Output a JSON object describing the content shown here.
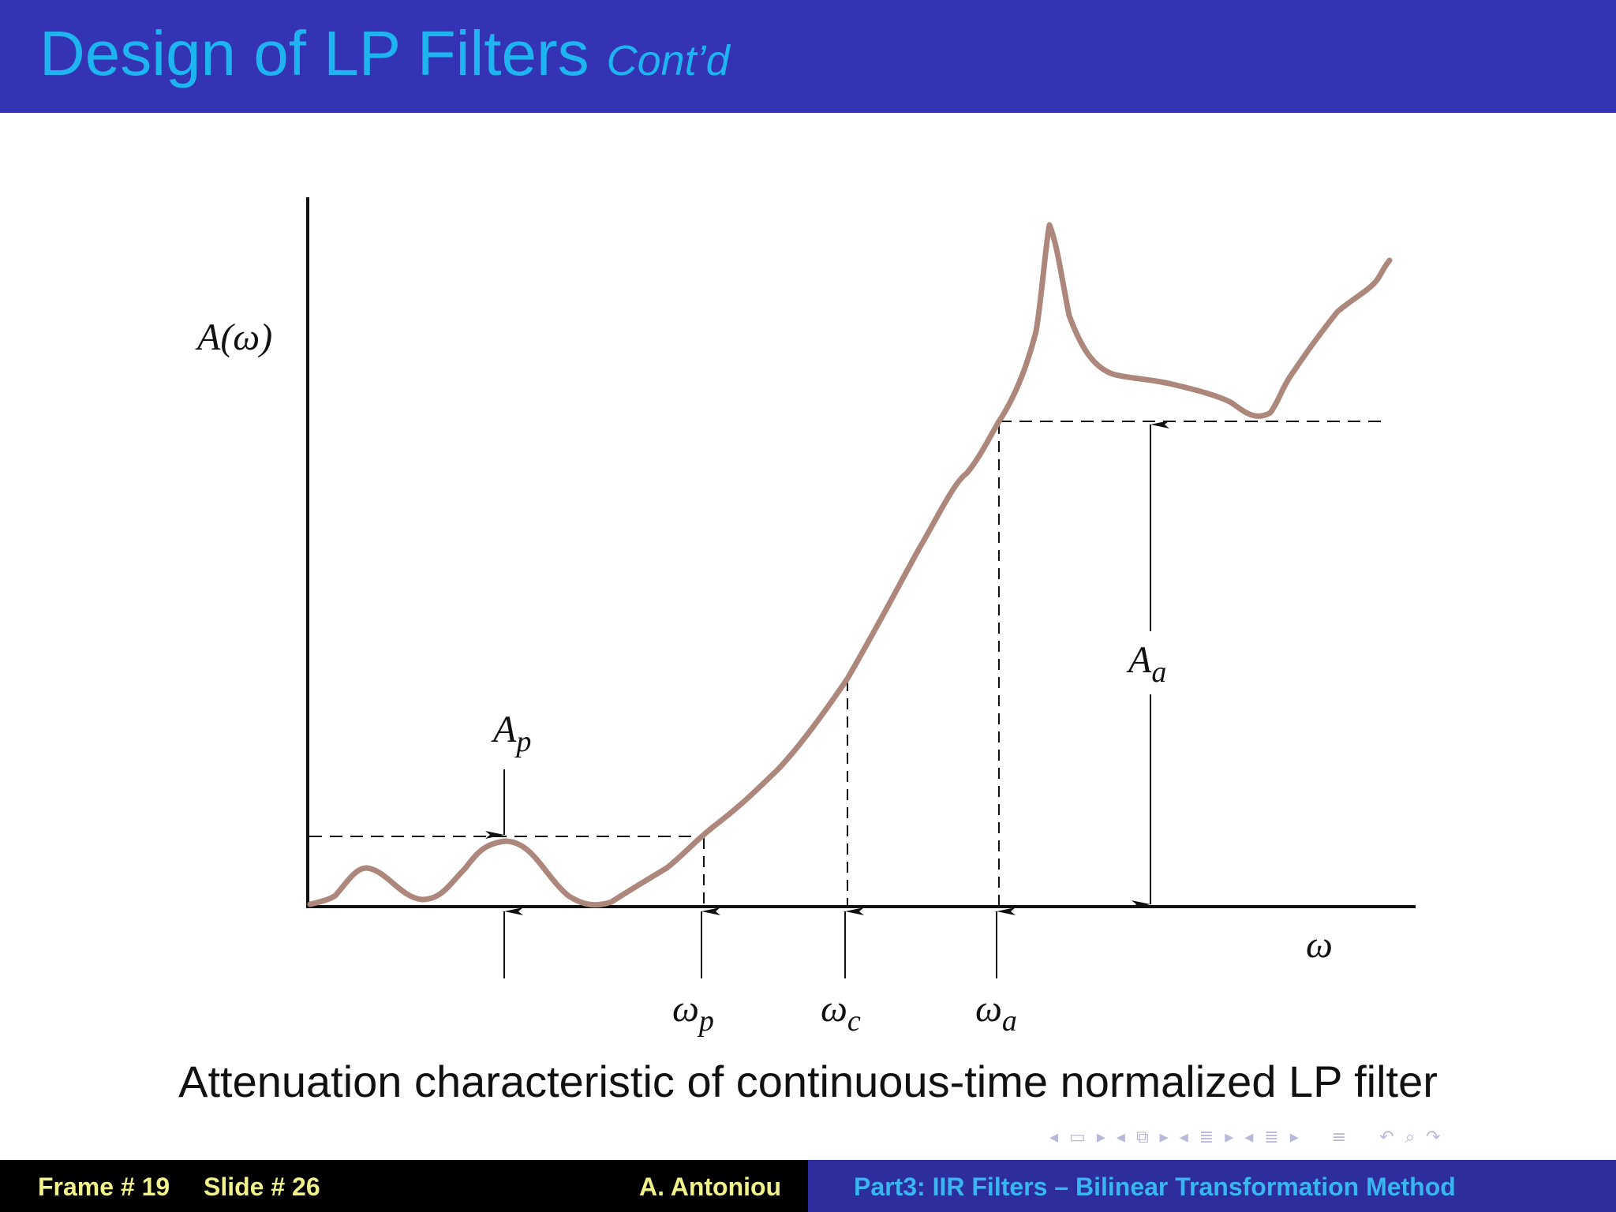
{
  "header": {
    "title": "Design of LP Filters",
    "subtitle": "Cont’d",
    "colors": {
      "background": "#3333b3",
      "title": "#1eb4f0"
    }
  },
  "diagram": {
    "y_axis_label": "A(ω)",
    "x_axis_label": "ω",
    "passband_label_base": "A",
    "passband_label_sub": "p",
    "stopband_label_base": "A",
    "stopband_label_sub": "a",
    "omega_p_base": "ω",
    "omega_p_sub": "p",
    "omega_c_base": "ω",
    "omega_c_sub": "c",
    "omega_a_base": "ω",
    "omega_a_sub": "a",
    "curve_color": "#ad877b"
  },
  "caption": "Attenuation characteristic of continuous-time normalized LP filter",
  "navigation": {
    "icons": [
      "nav-prev-arrow",
      "nav-frame-box",
      "nav-next-arrow",
      "nav-prev-arrow",
      "nav-section-box",
      "nav-next-arrow",
      "nav-prev-arrow",
      "nav-subsection-lines",
      "nav-next-arrow",
      "nav-prev-arrow",
      "nav-list-lines",
      "nav-next-arrow",
      "nav-align-lines",
      "nav-undo",
      "nav-zoom",
      "nav-redo"
    ]
  },
  "footer": {
    "frame": "Frame # 19",
    "slide": "Slide # 26",
    "author": "A. Antoniou",
    "part": "Part3: IIR Filters – Bilinear Transformation Method",
    "colors": {
      "left_bg": "#000000",
      "right_bg": "#2d2d9e",
      "left_text": "#f2f28a",
      "right_text": "#39b6f0"
    }
  }
}
